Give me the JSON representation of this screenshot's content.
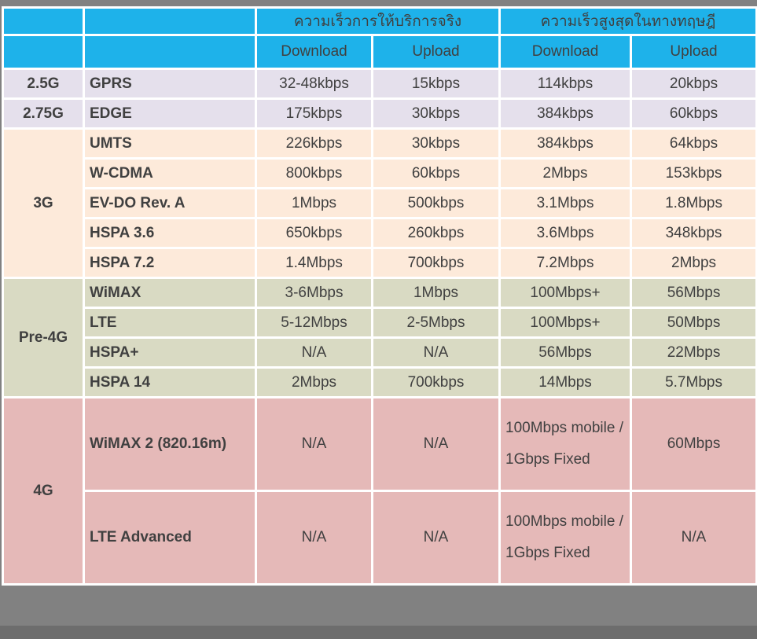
{
  "table": {
    "header": {
      "actual_group": "ความเร็วการให้บริการจริง",
      "theoretical_group": "ความเร็วสูงสุดในทางทฤษฎี",
      "col_download": "Download",
      "col_upload": "Upload"
    },
    "colors": {
      "header_bg": "#1eb2ea",
      "header_text": "#ffffff",
      "group_2g_bg": "#e5e0ec",
      "group_3g_bg": "#fdeada",
      "group_pre4g_bg": "#d9dac3",
      "group_4g_bg": "#e5b9b8",
      "body_text": "#404040",
      "border": "#ffffff",
      "page_background": "#818181"
    },
    "groups": [
      {
        "generation": "2.5G",
        "rows": [
          {
            "tech": "GPRS",
            "actual_down": "32-48kbps",
            "actual_up": "15kbps",
            "theo_down": "114kbps",
            "theo_up": "20kbps"
          }
        ]
      },
      {
        "generation": "2.75G",
        "rows": [
          {
            "tech": "EDGE",
            "actual_down": "175kbps",
            "actual_up": "30kbps",
            "theo_down": "384kbps",
            "theo_up": "60kbps"
          }
        ]
      },
      {
        "generation": "3G",
        "rows": [
          {
            "tech": "UMTS",
            "actual_down": "226kbps",
            "actual_up": "30kbps",
            "theo_down": "384kbps",
            "theo_up": "64kbps"
          },
          {
            "tech": "W-CDMA",
            "actual_down": "800kbps",
            "actual_up": "60kbps",
            "theo_down": "2Mbps",
            "theo_up": "153kbps"
          },
          {
            "tech": "EV-DO Rev. A",
            "actual_down": "1Mbps",
            "actual_up": "500kbps",
            "theo_down": "3.1Mbps",
            "theo_up": "1.8Mbps"
          },
          {
            "tech": "HSPA 3.6",
            "actual_down": "650kbps",
            "actual_up": "260kbps",
            "theo_down": "3.6Mbps",
            "theo_up": "348kbps"
          },
          {
            "tech": "HSPA 7.2",
            "actual_down": "1.4Mbps",
            "actual_up": "700kbps",
            "theo_down": "7.2Mbps",
            "theo_up": "2Mbps"
          }
        ]
      },
      {
        "generation": "Pre-4G",
        "rows": [
          {
            "tech": "WiMAX",
            "actual_down": "3-6Mbps",
            "actual_up": "1Mbps",
            "theo_down": "100Mbps+",
            "theo_up": "56Mbps"
          },
          {
            "tech": "LTE",
            "actual_down": "5-12Mbps",
            "actual_up": "2-5Mbps",
            "theo_down": "100Mbps+",
            "theo_up": "50Mbps"
          },
          {
            "tech": "HSPA+",
            "actual_down": "N/A",
            "actual_up": "N/A",
            "theo_down": "56Mbps",
            "theo_up": "22Mbps"
          },
          {
            "tech": "HSPA 14",
            "actual_down": "2Mbps",
            "actual_up": "700kbps",
            "theo_down": "14Mbps",
            "theo_up": "5.7Mbps"
          }
        ]
      },
      {
        "generation": "4G",
        "rows": [
          {
            "tech": "WiMAX 2 (820.16m)",
            "actual_down": "N/A",
            "actual_up": "N/A",
            "theo_down": "100Mbps mobile / 1Gbps Fixed",
            "theo_up": "60Mbps"
          },
          {
            "tech": "LTE Advanced",
            "actual_down": "N/A",
            "actual_up": "N/A",
            "theo_down": "100Mbps mobile / 1Gbps Fixed",
            "theo_up": "N/A"
          }
        ]
      }
    ]
  },
  "chart_data": {
    "type": "table",
    "column_groups": [
      "",
      "",
      "ความเร็วการให้บริการจริง",
      "ความเร็วสูงสุดในทางทฤษฎี"
    ],
    "columns": [
      "",
      "",
      "Download",
      "Upload",
      "Download",
      "Upload"
    ],
    "rows": [
      [
        "2.5G",
        "GPRS",
        "32-48kbps",
        "15kbps",
        "114kbps",
        "20kbps"
      ],
      [
        "2.75G",
        "EDGE",
        "175kbps",
        "30kbps",
        "384kbps",
        "60kbps"
      ],
      [
        "3G",
        "UMTS",
        "226kbps",
        "30kbps",
        "384kbps",
        "64kbps"
      ],
      [
        "3G",
        "W-CDMA",
        "800kbps",
        "60kbps",
        "2Mbps",
        "153kbps"
      ],
      [
        "3G",
        "EV-DO Rev. A",
        "1Mbps",
        "500kbps",
        "3.1Mbps",
        "1.8Mbps"
      ],
      [
        "3G",
        "HSPA 3.6",
        "650kbps",
        "260kbps",
        "3.6Mbps",
        "348kbps"
      ],
      [
        "3G",
        "HSPA 7.2",
        "1.4Mbps",
        "700kbps",
        "7.2Mbps",
        "2Mbps"
      ],
      [
        "Pre-4G",
        "WiMAX",
        "3-6Mbps",
        "1Mbps",
        "100Mbps+",
        "56Mbps"
      ],
      [
        "Pre-4G",
        "LTE",
        "5-12Mbps",
        "2-5Mbps",
        "100Mbps+",
        "50Mbps"
      ],
      [
        "Pre-4G",
        "HSPA+",
        "N/A",
        "N/A",
        "56Mbps",
        "22Mbps"
      ],
      [
        "Pre-4G",
        "HSPA 14",
        "2Mbps",
        "700kbps",
        "14Mbps",
        "5.7Mbps"
      ],
      [
        "4G",
        "WiMAX 2 (820.16m)",
        "N/A",
        "N/A",
        "100Mbps mobile / 1Gbps Fixed",
        "60Mbps"
      ],
      [
        "4G",
        "LTE Advanced",
        "N/A",
        "N/A",
        "100Mbps mobile / 1Gbps Fixed",
        "N/A"
      ]
    ]
  }
}
